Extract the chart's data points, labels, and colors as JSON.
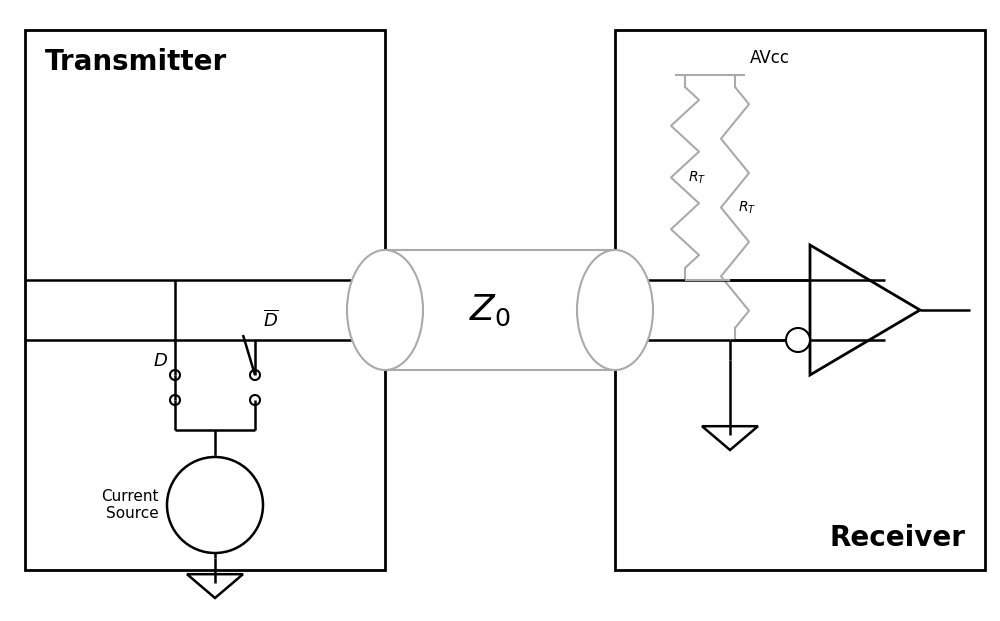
{
  "bg_color": "#ffffff",
  "line_color": "#000000",
  "gray_color": "#aaaaaa",
  "fig_width": 10.0,
  "fig_height": 6.21,
  "title_transmitter": "Transmitter",
  "title_receiver": "Receiver",
  "label_avcc": "AVcc",
  "label_z0": "Z",
  "label_current_source": "Current\nSource",
  "label_D": "D",
  "label_Dbar": "D"
}
